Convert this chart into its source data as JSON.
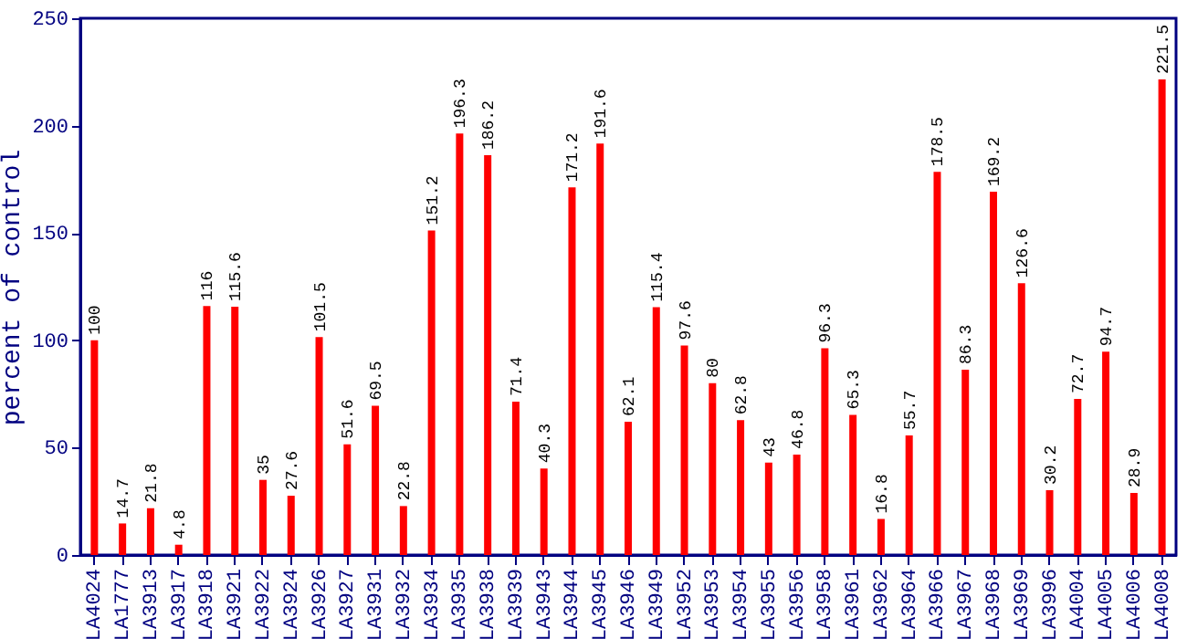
{
  "chart_data": {
    "type": "bar",
    "ylabel": "percent of control",
    "categories": [
      "LA4024",
      "LA1777",
      "LA3913",
      "LA3917",
      "LA3918",
      "LA3921",
      "LA3922",
      "LA3924",
      "LA3926",
      "LA3927",
      "LA3931",
      "LA3932",
      "LA3934",
      "LA3935",
      "LA3938",
      "LA3939",
      "LA3943",
      "LA3944",
      "LA3945",
      "LA3946",
      "LA3949",
      "LA3952",
      "LA3953",
      "LA3954",
      "LA3955",
      "LA3956",
      "LA3958",
      "LA3961",
      "LA3962",
      "LA3964",
      "LA3966",
      "LA3967",
      "LA3968",
      "LA3969",
      "LA3996",
      "LA4004",
      "LA4005",
      "LA4006",
      "LA4008"
    ],
    "values": [
      100,
      14.7,
      21.8,
      4.8,
      116,
      115.6,
      35,
      27.6,
      101.5,
      51.6,
      69.5,
      22.8,
      151.2,
      196.3,
      186.2,
      71.4,
      40.3,
      171.2,
      191.6,
      62.1,
      115.4,
      97.6,
      80,
      62.8,
      43,
      46.8,
      96.3,
      65.3,
      16.8,
      55.7,
      178.5,
      86.3,
      169.2,
      126.6,
      30.2,
      72.7,
      94.7,
      28.9,
      221.5
    ],
    "color": "#ff0000",
    "ylim": [
      0,
      250
    ],
    "yticks": [
      0,
      50,
      100,
      150,
      200,
      250
    ],
    "data_labels": true,
    "grid": false
  }
}
